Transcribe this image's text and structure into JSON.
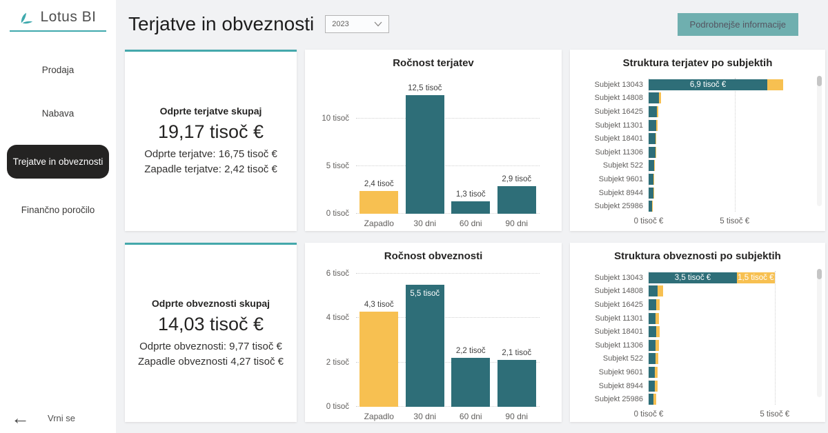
{
  "app": {
    "logo_text": "Lotus BI"
  },
  "sidebar": {
    "items": [
      {
        "label": "Prodaja",
        "active": false
      },
      {
        "label": "Nabava",
        "active": false
      },
      {
        "label": "Trejatve in obveznosti",
        "active": true
      },
      {
        "label": "Finančno poročilo",
        "active": false
      }
    ],
    "back_label": "Vrni se"
  },
  "header": {
    "title": "Terjatve in obveznosti",
    "year_selector": {
      "value": "2023"
    },
    "info_button_label": "Podrobnejše informacije"
  },
  "kpi_cards": [
    {
      "title": "Odprte terjatve skupaj",
      "value": "19,17 tisoč €",
      "line1": "Odprte terjatve: 16,75 tisoč €",
      "line2": "Zapadle terjatve: 2,42 tisoč €"
    },
    {
      "title": "Odprte obveznosti skupaj",
      "value": "14,03 tisoč €",
      "line1": "Odprte obveznosti: 9,77 tisoč €",
      "line2": "Zapadle obveznosti 4,27 tisoč €"
    }
  ],
  "colors": {
    "teal": "#2e6e78",
    "yellow": "#f7c051",
    "accent": "#44a8ab",
    "active_pill": "#242322",
    "button": "#6fafaf"
  },
  "chart_data": [
    {
      "id": "rocnost-terjatev",
      "type": "bar",
      "title": "Ročnost terjatev",
      "categories": [
        "Zapadlo",
        "30 dni",
        "60 dni",
        "90 dni"
      ],
      "values": [
        2.4,
        12.5,
        1.3,
        2.9
      ],
      "labels": [
        "2,4 tisoč",
        "12,5 tisoč",
        "1,3 tisoč",
        "2,9 tisoč"
      ],
      "bar_colors": [
        "yellow",
        "teal",
        "teal",
        "teal"
      ],
      "ylim": [
        0,
        14
      ],
      "yticks": [
        {
          "v": 0,
          "label": "0 tisoč"
        },
        {
          "v": 5,
          "label": "5 tisoč"
        },
        {
          "v": 10,
          "label": "10 tisoč"
        }
      ],
      "grid": "dotted-horizontal"
    },
    {
      "id": "rocnost-obveznosti",
      "type": "bar",
      "title": "Ročnost obveznosti",
      "categories": [
        "Zapadlo",
        "30 dni",
        "60 dni",
        "90 dni"
      ],
      "values": [
        4.3,
        5.5,
        2.2,
        2.1
      ],
      "labels": [
        "4,3 tisoč",
        "5,5 tisoč",
        "2,2 tisoč",
        "2,1 tisoč"
      ],
      "bar_colors": [
        "yellow",
        "teal",
        "teal",
        "teal"
      ],
      "ylim": [
        0,
        6
      ],
      "yticks": [
        {
          "v": 0,
          "label": "0 tisoč"
        },
        {
          "v": 2,
          "label": "2 tisoč"
        },
        {
          "v": 4,
          "label": "4 tisoč"
        },
        {
          "v": 6,
          "label": "6 tisoč"
        }
      ],
      "grid": "dotted-horizontal"
    },
    {
      "id": "struktura-terjatev",
      "type": "stacked_bar_horizontal",
      "title": "Struktura terjatev po subjektih",
      "categories": [
        "Subjekt 13043",
        "Subjekt 14808",
        "Subjekt 16425",
        "Subjekt 11301",
        "Subjekt 18401",
        "Subjekt 11306",
        "Subjekt 522",
        "Subjekt 9601",
        "Subjekt 8944",
        "Subjekt 25986"
      ],
      "series": [
        {
          "name": "Odprte terjatve",
          "color": "teal",
          "values": [
            6.9,
            0.62,
            0.5,
            0.45,
            0.4,
            0.4,
            0.33,
            0.3,
            0.3,
            0.22
          ]
        },
        {
          "name": "Zapadle terjatve",
          "color": "yellow",
          "values": [
            0.9,
            0.1,
            0.08,
            0.07,
            0.06,
            0.06,
            0.05,
            0.04,
            0.04,
            0.04
          ]
        }
      ],
      "bar_labels": [
        {
          "row": 0,
          "series": 0,
          "text": "6,9 tisoč €"
        }
      ],
      "xlim": [
        0,
        8.5
      ],
      "xticks": [
        {
          "v": 0,
          "label": "0 tisoč €"
        },
        {
          "v": 5,
          "label": "5 tisoč €"
        }
      ],
      "grid": "dotted-vertical",
      "scrollbar": true
    },
    {
      "id": "struktura-obveznosti",
      "type": "stacked_bar_horizontal",
      "title": "Struktura obveznosti po subjektih",
      "categories": [
        "Subjekt 13043",
        "Subjekt 14808",
        "Subjekt 16425",
        "Subjekt 11301",
        "Subjekt 18401",
        "Subjekt 11306",
        "Subjekt 522",
        "Subjekt 9601",
        "Subjekt 8944",
        "Subjekt 25986"
      ],
      "series": [
        {
          "name": "Odprte obveznosti",
          "color": "teal",
          "values": [
            3.5,
            0.35,
            0.3,
            0.28,
            0.3,
            0.28,
            0.26,
            0.25,
            0.25,
            0.2
          ]
        },
        {
          "name": "Zapadle obveznosti",
          "color": "yellow",
          "values": [
            1.5,
            0.22,
            0.15,
            0.13,
            0.13,
            0.13,
            0.11,
            0.1,
            0.1,
            0.1
          ]
        }
      ],
      "bar_labels": [
        {
          "row": 0,
          "series": 0,
          "text": "3,5 tisoč €"
        },
        {
          "row": 0,
          "series": 1,
          "text": "1,5 tisoč €"
        }
      ],
      "xlim": [
        0,
        5.8
      ],
      "xticks": [
        {
          "v": 0,
          "label": "0 tisoč €"
        },
        {
          "v": 5,
          "label": "5 tisoč €"
        }
      ],
      "grid": "dotted-vertical",
      "scrollbar": true
    }
  ]
}
